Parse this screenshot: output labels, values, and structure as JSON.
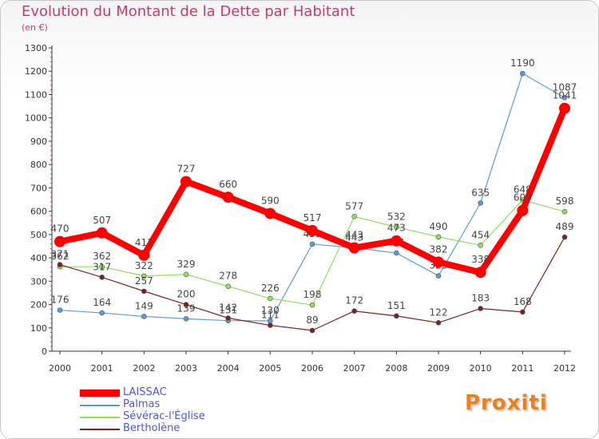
{
  "header": {
    "title": "Evolution du Montant de la Dette par Habitant",
    "subtitle": "(en €)"
  },
  "brand": {
    "logo_text": "Proxiti"
  },
  "chart_data": {
    "type": "line",
    "title": "Evolution du Montant de la Dette par Habitant",
    "subtitle": "(en €)",
    "xlabel": "",
    "ylabel": "",
    "x": [
      "2000",
      "2001",
      "2002",
      "2003",
      "2004",
      "2005",
      "2006",
      "2007",
      "2008",
      "2009",
      "2010",
      "2011",
      "2012"
    ],
    "ylim": [
      0,
      1300
    ],
    "ytick_step": 100,
    "grid": false,
    "legend_placement": "bottom-left",
    "series": [
      {
        "name": "LAISSAC",
        "color": "#ff0000",
        "emphasis": true,
        "values": [
          470,
          507,
          411,
          727,
          660,
          590,
          517,
          443,
          473,
          382,
          338,
          603,
          1041
        ]
      },
      {
        "name": "Palmas",
        "color": "#5b9bd5",
        "emphasis": false,
        "values": [
          176,
          164,
          149,
          139,
          131,
          130,
          459,
          443,
          421,
          323,
          635,
          1190,
          1087
        ]
      },
      {
        "name": "Sévérac-l'Église",
        "color": "#8ee05a",
        "emphasis": false,
        "values": [
          362,
          362,
          322,
          329,
          278,
          226,
          198,
          577,
          532,
          490,
          454,
          648,
          598
        ]
      },
      {
        "name": "Bertholène",
        "color": "#7a2222",
        "emphasis": false,
        "values": [
          371,
          317,
          257,
          200,
          142,
          111,
          89,
          172,
          151,
          122,
          183,
          168,
          489
        ]
      }
    ]
  }
}
